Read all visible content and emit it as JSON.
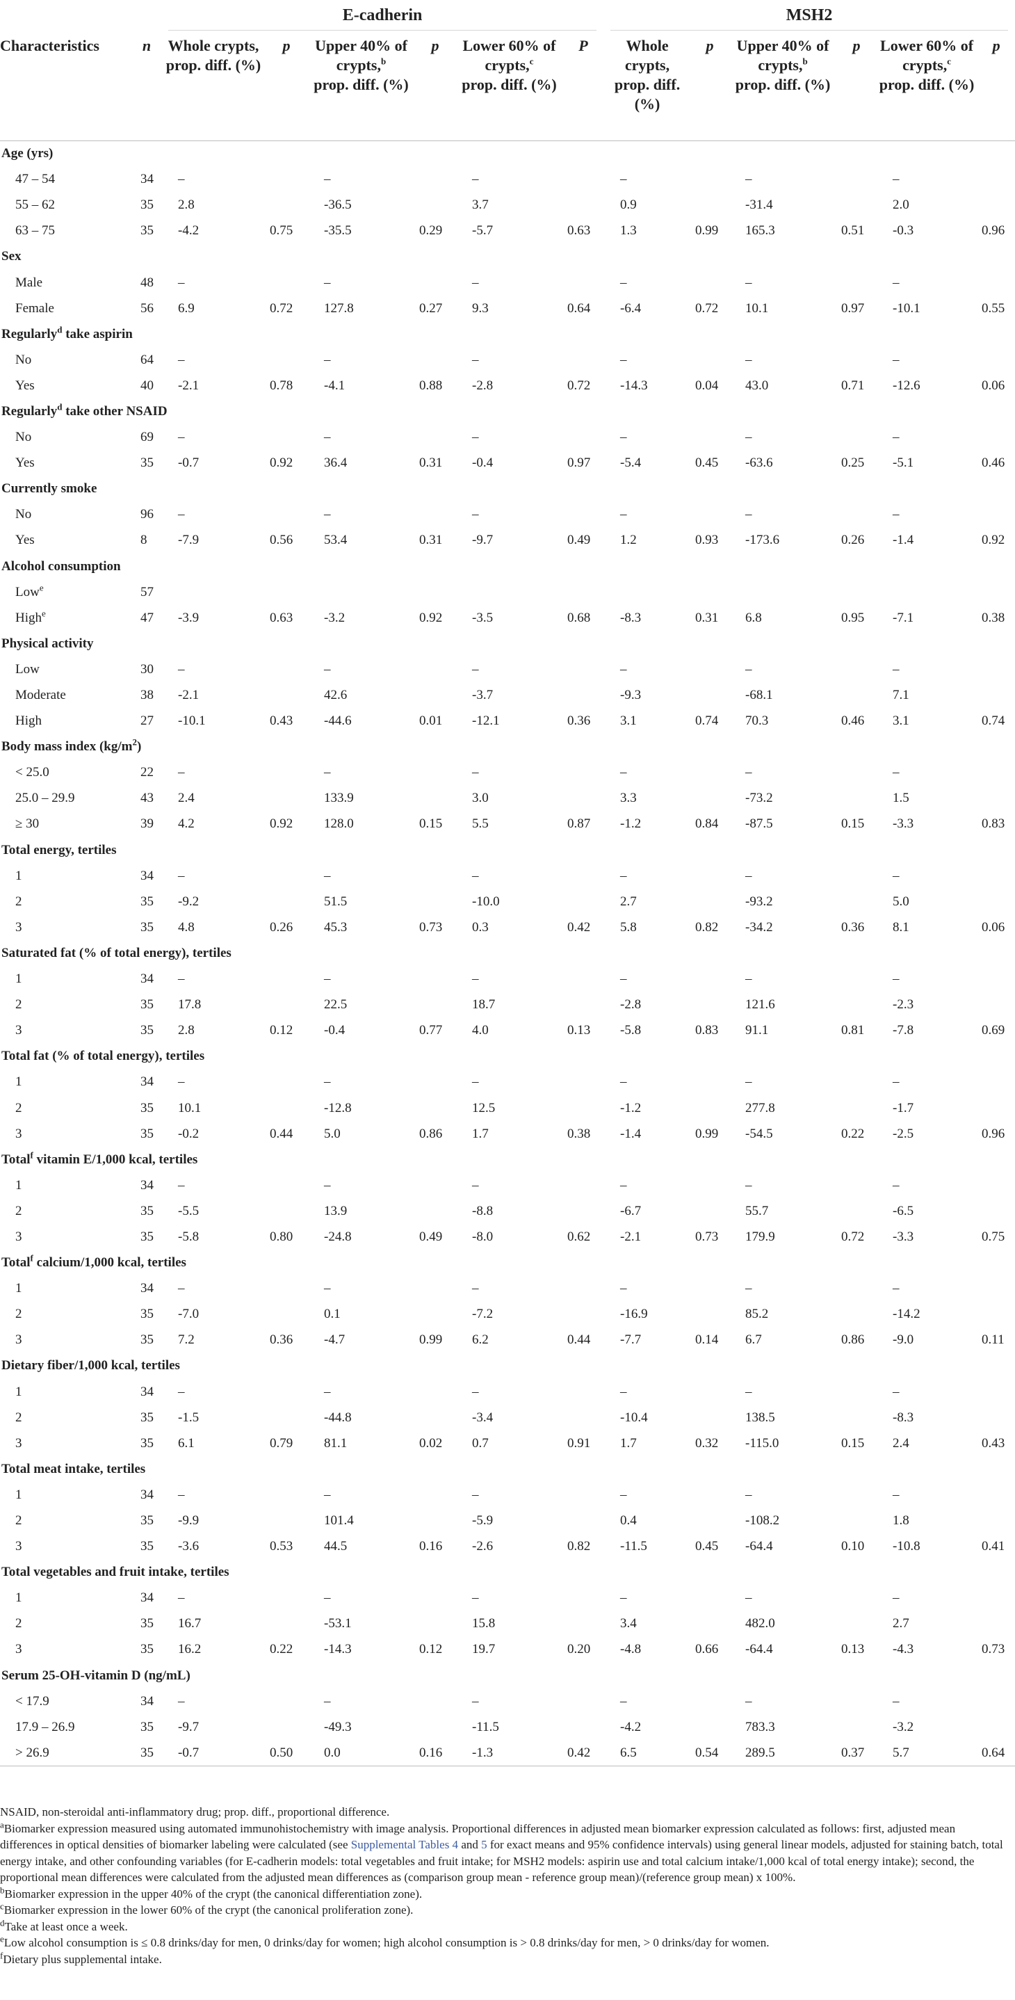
{
  "headers": {
    "group_ecadherin": "E-cadherin",
    "group_msh2": "MSH2",
    "characteristics": "Characteristics",
    "n": "n",
    "whole": "Whole crypts, prop. diff. (%)",
    "upper": "Upper 40% of crypts,",
    "upper_sup": "b",
    "upper_tail": "prop. diff. (%)",
    "lower": "Lower 60% of crypts,",
    "lower_sup": "c",
    "lower_tail": "prop. diff. (%)",
    "p": "p",
    "P": "P"
  },
  "sections": [
    {
      "title": "Age (yrs)",
      "title_sup": "",
      "title_tail": "",
      "rows": [
        {
          "label": "47 – 54",
          "label_sup": "",
          "n": "34",
          "c": [
            "–",
            "",
            "–",
            "",
            "–",
            "",
            "–",
            "",
            "–",
            "",
            "–",
            ""
          ]
        },
        {
          "label": "55 – 62",
          "label_sup": "",
          "n": "35",
          "c": [
            "2.8",
            "",
            "-36.5",
            "",
            "3.7",
            "",
            "0.9",
            "",
            "-31.4",
            "",
            "2.0",
            ""
          ]
        },
        {
          "label": "63 – 75",
          "label_sup": "",
          "n": "35",
          "c": [
            "-4.2",
            "0.75",
            "-35.5",
            "0.29",
            "-5.7",
            "0.63",
            "1.3",
            "0.99",
            "165.3",
            "0.51",
            "-0.3",
            "0.96"
          ]
        }
      ]
    },
    {
      "title": "Sex",
      "title_sup": "",
      "title_tail": "",
      "rows": [
        {
          "label": "Male",
          "label_sup": "",
          "n": "48",
          "c": [
            "–",
            "",
            "–",
            "",
            "–",
            "",
            "–",
            "",
            "–",
            "",
            "–",
            ""
          ]
        },
        {
          "label": "Female",
          "label_sup": "",
          "n": "56",
          "c": [
            "6.9",
            "0.72",
            "127.8",
            "0.27",
            "9.3",
            "0.64",
            "-6.4",
            "0.72",
            "10.1",
            "0.97",
            "-10.1",
            "0.55"
          ]
        }
      ]
    },
    {
      "title": "Regularly",
      "title_sup": "d",
      "title_tail": " take aspirin",
      "rows": [
        {
          "label": "No",
          "label_sup": "",
          "n": "64",
          "c": [
            "–",
            "",
            "–",
            "",
            "–",
            "",
            "–",
            "",
            "–",
            "",
            "–",
            ""
          ]
        },
        {
          "label": "Yes",
          "label_sup": "",
          "n": "40",
          "c": [
            "-2.1",
            "0.78",
            "-4.1",
            "0.88",
            "-2.8",
            "0.72",
            "-14.3",
            "0.04",
            "43.0",
            "0.71",
            "-12.6",
            "0.06"
          ]
        }
      ]
    },
    {
      "title": "Regularly",
      "title_sup": "d",
      "title_tail": " take other NSAID",
      "rows": [
        {
          "label": "No",
          "label_sup": "",
          "n": "69",
          "c": [
            "–",
            "",
            "–",
            "",
            "–",
            "",
            "–",
            "",
            "–",
            "",
            "–",
            ""
          ]
        },
        {
          "label": "Yes",
          "label_sup": "",
          "n": "35",
          "c": [
            "-0.7",
            "0.92",
            "36.4",
            "0.31",
            "-0.4",
            "0.97",
            "-5.4",
            "0.45",
            "-63.6",
            "0.25",
            "-5.1",
            "0.46"
          ]
        }
      ]
    },
    {
      "title": "Currently smoke",
      "title_sup": "",
      "title_tail": "",
      "rows": [
        {
          "label": "No",
          "label_sup": "",
          "n": "96",
          "c": [
            "–",
            "",
            "–",
            "",
            "–",
            "",
            "–",
            "",
            "–",
            "",
            "–",
            ""
          ]
        },
        {
          "label": "Yes",
          "label_sup": "",
          "n": "8",
          "c": [
            "-7.9",
            "0.56",
            "53.4",
            "0.31",
            "-9.7",
            "0.49",
            "1.2",
            "0.93",
            "-173.6",
            "0.26",
            "-1.4",
            "0.92"
          ]
        }
      ]
    },
    {
      "title": "Alcohol consumption",
      "title_sup": "",
      "title_tail": "",
      "rows": [
        {
          "label": "Low",
          "label_sup": "e",
          "n": "57",
          "c": [
            "",
            "",
            "",
            "",
            "",
            "",
            "",
            "",
            "",
            "",
            "",
            ""
          ]
        },
        {
          "label": "High",
          "label_sup": "e",
          "n": "47",
          "c": [
            "-3.9",
            "0.63",
            "-3.2",
            "0.92",
            "-3.5",
            "0.68",
            "-8.3",
            "0.31",
            "6.8",
            "0.95",
            "-7.1",
            "0.38"
          ]
        }
      ]
    },
    {
      "title": "Physical activity",
      "title_sup": "",
      "title_tail": "",
      "rows": [
        {
          "label": "Low",
          "label_sup": "",
          "n": "30",
          "c": [
            "–",
            "",
            "–",
            "",
            "–",
            "",
            "–",
            "",
            "–",
            "",
            "–",
            ""
          ]
        },
        {
          "label": "Moderate",
          "label_sup": "",
          "n": "38",
          "c": [
            "-2.1",
            "",
            "42.6",
            "",
            "-3.7",
            "",
            "-9.3",
            "",
            "-68.1",
            "",
            "7.1",
            ""
          ]
        },
        {
          "label": "High",
          "label_sup": "",
          "n": "27",
          "c": [
            "-10.1",
            "0.43",
            "-44.6",
            "0.01",
            "-12.1",
            "0.36",
            "3.1",
            "0.74",
            "70.3",
            "0.46",
            "3.1",
            "0.74"
          ]
        }
      ]
    },
    {
      "title": "Body mass index (kg/m",
      "title_sup": "2",
      "title_tail": ")",
      "rows": [
        {
          "label": "< 25.0",
          "label_sup": "",
          "n": "22",
          "c": [
            "–",
            "",
            "–",
            "",
            "–",
            "",
            "–",
            "",
            "–",
            "",
            "–",
            ""
          ]
        },
        {
          "label": "25.0 – 29.9",
          "label_sup": "",
          "n": "43",
          "c": [
            "2.4",
            "",
            "133.9",
            "",
            "3.0",
            "",
            "3.3",
            "",
            "-73.2",
            "",
            "1.5",
            ""
          ]
        },
        {
          "label": "≥ 30",
          "label_sup": "",
          "n": "39",
          "c": [
            "4.2",
            "0.92",
            "128.0",
            "0.15",
            "5.5",
            "0.87",
            "-1.2",
            "0.84",
            "-87.5",
            "0.15",
            "-3.3",
            "0.83"
          ]
        }
      ]
    },
    {
      "title": "Total energy, tertiles",
      "title_sup": "",
      "title_tail": "",
      "rows": [
        {
          "label": "1",
          "label_sup": "",
          "n": "34",
          "c": [
            "–",
            "",
            "–",
            "",
            "–",
            "",
            "–",
            "",
            "–",
            "",
            "–",
            ""
          ]
        },
        {
          "label": "2",
          "label_sup": "",
          "n": "35",
          "c": [
            "-9.2",
            "",
            "51.5",
            "",
            "-10.0",
            "",
            "2.7",
            "",
            "-93.2",
            "",
            "5.0",
            ""
          ]
        },
        {
          "label": "3",
          "label_sup": "",
          "n": "35",
          "c": [
            "4.8",
            "0.26",
            "45.3",
            "0.73",
            "0.3",
            "0.42",
            "5.8",
            "0.82",
            "-34.2",
            "0.36",
            "8.1",
            "0.06"
          ]
        }
      ]
    },
    {
      "title": "Saturated fat (% of total energy), tertiles",
      "title_sup": "",
      "title_tail": "",
      "rows": [
        {
          "label": "1",
          "label_sup": "",
          "n": "34",
          "c": [
            "–",
            "",
            "–",
            "",
            "–",
            "",
            "–",
            "",
            "–",
            "",
            "–",
            ""
          ]
        },
        {
          "label": "2",
          "label_sup": "",
          "n": "35",
          "c": [
            "17.8",
            "",
            "22.5",
            "",
            "18.7",
            "",
            "-2.8",
            "",
            "121.6",
            "",
            "-2.3",
            ""
          ]
        },
        {
          "label": "3",
          "label_sup": "",
          "n": "35",
          "c": [
            "2.8",
            "0.12",
            "-0.4",
            "0.77",
            "4.0",
            "0.13",
            "-5.8",
            "0.83",
            "91.1",
            "0.81",
            "-7.8",
            "0.69"
          ]
        }
      ]
    },
    {
      "title": "Total fat (% of total energy), tertiles",
      "title_sup": "",
      "title_tail": "",
      "rows": [
        {
          "label": "1",
          "label_sup": "",
          "n": "34",
          "c": [
            "–",
            "",
            "–",
            "",
            "–",
            "",
            "–",
            "",
            "–",
            "",
            "–",
            ""
          ]
        },
        {
          "label": "2",
          "label_sup": "",
          "n": "35",
          "c": [
            "10.1",
            "",
            "-12.8",
            "",
            "12.5",
            "",
            "-1.2",
            "",
            "277.8",
            "",
            "-1.7",
            ""
          ]
        },
        {
          "label": "3",
          "label_sup": "",
          "n": "35",
          "c": [
            "-0.2",
            "0.44",
            "5.0",
            "0.86",
            "1.7",
            "0.38",
            "-1.4",
            "0.99",
            "-54.5",
            "0.22",
            "-2.5",
            "0.96"
          ]
        }
      ]
    },
    {
      "title": "Total",
      "title_sup": "f",
      "title_tail": " vitamin E/1,000 kcal, tertiles",
      "rows": [
        {
          "label": "1",
          "label_sup": "",
          "n": "34",
          "c": [
            "–",
            "",
            "–",
            "",
            "–",
            "",
            "–",
            "",
            "–",
            "",
            "–",
            ""
          ]
        },
        {
          "label": "2",
          "label_sup": "",
          "n": "35",
          "c": [
            "-5.5",
            "",
            "13.9",
            "",
            "-8.8",
            "",
            "-6.7",
            "",
            "55.7",
            "",
            "-6.5",
            ""
          ]
        },
        {
          "label": "3",
          "label_sup": "",
          "n": "35",
          "c": [
            "-5.8",
            "0.80",
            "-24.8",
            "0.49",
            "-8.0",
            "0.62",
            "-2.1",
            "0.73",
            "179.9",
            "0.72",
            "-3.3",
            "0.75"
          ]
        }
      ]
    },
    {
      "title": "Total",
      "title_sup": "f",
      "title_tail": " calcium/1,000 kcal, tertiles",
      "rows": [
        {
          "label": "1",
          "label_sup": "",
          "n": "34",
          "c": [
            "–",
            "",
            "–",
            "",
            "–",
            "",
            "–",
            "",
            "–",
            "",
            "–",
            ""
          ]
        },
        {
          "label": "2",
          "label_sup": "",
          "n": "35",
          "c": [
            "-7.0",
            "",
            "0.1",
            "",
            "-7.2",
            "",
            "-16.9",
            "",
            "85.2",
            "",
            "-14.2",
            ""
          ]
        },
        {
          "label": "3",
          "label_sup": "",
          "n": "35",
          "c": [
            "7.2",
            "0.36",
            "-4.7",
            "0.99",
            "6.2",
            "0.44",
            "-7.7",
            "0.14",
            "6.7",
            "0.86",
            "-9.0",
            "0.11"
          ]
        }
      ]
    },
    {
      "title": "Dietary fiber/1,000 kcal, tertiles",
      "title_sup": "",
      "title_tail": "",
      "rows": [
        {
          "label": "1",
          "label_sup": "",
          "n": "34",
          "c": [
            "–",
            "",
            "–",
            "",
            "–",
            "",
            "–",
            "",
            "–",
            "",
            "–",
            ""
          ]
        },
        {
          "label": "2",
          "label_sup": "",
          "n": "35",
          "c": [
            "-1.5",
            "",
            "-44.8",
            "",
            "-3.4",
            "",
            "-10.4",
            "",
            "138.5",
            "",
            "-8.3",
            ""
          ]
        },
        {
          "label": "3",
          "label_sup": "",
          "n": "35",
          "c": [
            "6.1",
            "0.79",
            "81.1",
            "0.02",
            "0.7",
            "0.91",
            "1.7",
            "0.32",
            "-115.0",
            "0.15",
            "2.4",
            "0.43"
          ]
        }
      ]
    },
    {
      "title": "Total meat intake, tertiles",
      "title_sup": "",
      "title_tail": "",
      "rows": [
        {
          "label": "1",
          "label_sup": "",
          "n": "34",
          "c": [
            "–",
            "",
            "–",
            "",
            "–",
            "",
            "–",
            "",
            "–",
            "",
            "–",
            ""
          ]
        },
        {
          "label": "2",
          "label_sup": "",
          "n": "35",
          "c": [
            "-9.9",
            "",
            "101.4",
            "",
            "-5.9",
            "",
            "0.4",
            "",
            "-108.2",
            "",
            "1.8",
            ""
          ]
        },
        {
          "label": "3",
          "label_sup": "",
          "n": "35",
          "c": [
            "-3.6",
            "0.53",
            "44.5",
            "0.16",
            "-2.6",
            "0.82",
            "-11.5",
            "0.45",
            "-64.4",
            "0.10",
            "-10.8",
            "0.41"
          ]
        }
      ]
    },
    {
      "title": "Total vegetables and fruit intake, tertiles",
      "title_sup": "",
      "title_tail": "",
      "rows": [
        {
          "label": "1",
          "label_sup": "",
          "n": "34",
          "c": [
            "–",
            "",
            "–",
            "",
            "–",
            "",
            "–",
            "",
            "–",
            "",
            "–",
            ""
          ]
        },
        {
          "label": "2",
          "label_sup": "",
          "n": "35",
          "c": [
            "16.7",
            "",
            "-53.1",
            "",
            "15.8",
            "",
            "3.4",
            "",
            "482.0",
            "",
            "2.7",
            ""
          ]
        },
        {
          "label": "3",
          "label_sup": "",
          "n": "35",
          "c": [
            "16.2",
            "0.22",
            "-14.3",
            "0.12",
            "19.7",
            "0.20",
            "-4.8",
            "0.66",
            "-64.4",
            "0.13",
            "-4.3",
            "0.73"
          ]
        }
      ]
    },
    {
      "title": "Serum 25-OH-vitamin D (ng/mL)",
      "title_sup": "",
      "title_tail": "",
      "rows": [
        {
          "label": "< 17.9",
          "label_sup": "",
          "n": "34",
          "c": [
            "–",
            "",
            "–",
            "",
            "–",
            "",
            "–",
            "",
            "–",
            "",
            "–",
            ""
          ]
        },
        {
          "label": "17.9 – 26.9",
          "label_sup": "",
          "n": "35",
          "c": [
            "-9.7",
            "",
            "-49.3",
            "",
            "-11.5",
            "",
            "-4.2",
            "",
            "783.3",
            "",
            "-3.2",
            ""
          ]
        },
        {
          "label": "> 26.9",
          "label_sup": "",
          "n": "35",
          "c": [
            "-0.7",
            "0.50",
            "0.0",
            "0.16",
            "-1.3",
            "0.42",
            "6.5",
            "0.54",
            "289.5",
            "0.37",
            "5.7",
            "0.64"
          ]
        }
      ]
    }
  ],
  "footnotes": {
    "abbrev": "NSAID, non-steroidal anti-inflammatory drug; prop. diff., proportional difference.",
    "a_mark": "a",
    "a_text_1": "Biomarker expression measured using automated immunohistochemistry with image analysis. Proportional differences in adjusted mean biomarker expression calculated as follows: first, adjusted mean differences in optical densities of biomarker labeling were calculated (see ",
    "a_link_1": "Supplemental Tables 4",
    "a_text_2": " and ",
    "a_link_2": "5",
    "a_text_3": " for exact means and 95% confidence intervals) using general linear models, adjusted for staining batch, total energy intake, and other confounding variables (for E-cadherin models: total vegetables and fruit intake; for MSH2 models: aspirin use and total calcium intake/1,000 kcal of total energy intake); second, the proportional mean differences were calculated from the adjusted mean differences as (comparison group mean - reference group mean)/(reference group mean) x 100%.",
    "b_mark": "b",
    "b_text": "Biomarker expression in the upper 40% of the crypt (the canonical differentiation zone).",
    "c_mark": "c",
    "c_text": "Biomarker expression in the lower 60% of the crypt (the canonical proliferation zone).",
    "d_mark": "d",
    "d_text": "Take at least once a week.",
    "e_mark": "e",
    "e_text": "Low alcohol consumption is ≤ 0.8 drinks/day for men, 0 drinks/day for women; high alcohol consumption is > 0.8 drinks/day for men, > 0 drinks/day for women.",
    "f_mark": "f",
    "f_text": "Dietary plus supplemental intake."
  }
}
